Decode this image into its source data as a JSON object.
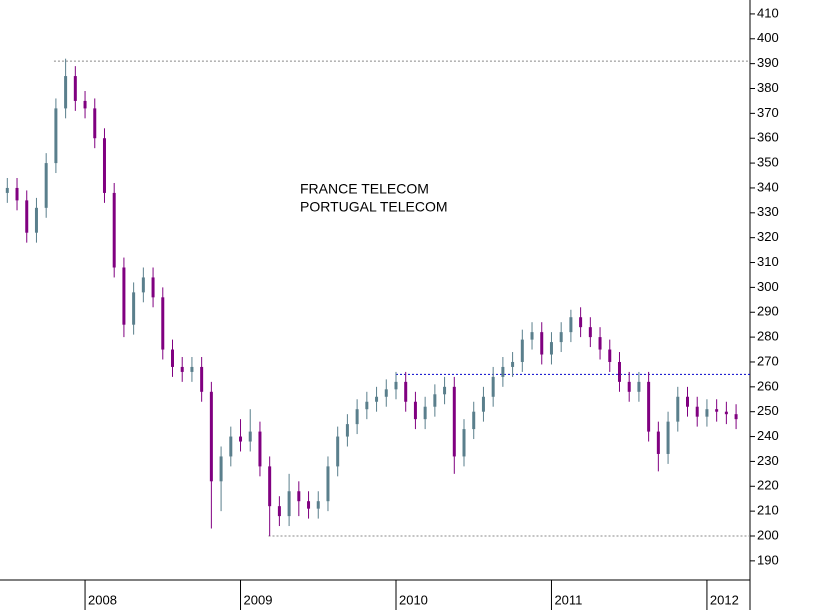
{
  "chart_data": {
    "type": "candlestick",
    "annotations": [
      "FRANCE TELECOM",
      "PORTUGAL TELECOM"
    ],
    "up_color": "#5a7f8c",
    "down_color": "#800080",
    "x": [
      2007.5,
      2007.5625,
      2007.625,
      2007.6875,
      2007.75,
      2007.8125,
      2007.875,
      2007.9375,
      2008,
      2008.0625,
      2008.125,
      2008.1875,
      2008.25,
      2008.3125,
      2008.375,
      2008.4375,
      2008.5,
      2008.5625,
      2008.625,
      2008.6875,
      2008.75,
      2008.8125,
      2008.875,
      2008.9375,
      2009,
      2009.0625,
      2009.125,
      2009.1875,
      2009.25,
      2009.3125,
      2009.375,
      2009.4375,
      2009.5,
      2009.5625,
      2009.625,
      2009.6875,
      2009.75,
      2009.8125,
      2009.875,
      2009.9375,
      2010,
      2010.0625,
      2010.125,
      2010.1875,
      2010.25,
      2010.3125,
      2010.375,
      2010.4375,
      2010.5,
      2010.5625,
      2010.625,
      2010.6875,
      2010.75,
      2010.8125,
      2010.875,
      2010.9375,
      2011,
      2011.0625,
      2011.125,
      2011.1875,
      2011.25,
      2011.3125,
      2011.375,
      2011.4375,
      2011.5,
      2011.5625,
      2011.625,
      2011.6875,
      2011.75,
      2011.8125,
      2011.875,
      2011.9375,
      2012,
      2012.0625,
      2012.125,
      2012.1875
    ],
    "open": [
      338,
      340,
      335,
      322,
      332,
      350,
      372,
      385,
      375,
      372,
      360,
      338,
      308,
      285,
      298,
      304,
      296,
      275,
      268,
      266,
      268,
      258,
      222,
      232,
      240,
      238,
      242,
      228,
      212,
      208,
      218,
      214,
      211,
      214,
      228,
      240,
      245,
      251,
      254,
      256,
      259,
      262,
      254,
      247,
      252,
      257,
      260,
      232,
      243,
      250,
      256,
      264,
      268,
      270,
      279,
      282,
      273,
      278,
      282,
      288,
      284,
      280,
      275,
      270,
      262,
      258,
      262,
      242,
      233,
      246,
      256,
      252,
      248,
      251,
      250,
      249
    ],
    "high": [
      344,
      344,
      339,
      336,
      354,
      376,
      392,
      389,
      379,
      376,
      364,
      342,
      312,
      302,
      308,
      308,
      300,
      279,
      272,
      272,
      272,
      262,
      236,
      244,
      247,
      251,
      246,
      232,
      216,
      225,
      222,
      218,
      218,
      232,
      244,
      249,
      255,
      258,
      260,
      263,
      266,
      266,
      258,
      256,
      261,
      264,
      264,
      247,
      254,
      260,
      268,
      272,
      274,
      283,
      286,
      286,
      282,
      286,
      291,
      292,
      288,
      284,
      279,
      274,
      266,
      266,
      266,
      246,
      250,
      260,
      260,
      256,
      255,
      255,
      254,
      253
    ],
    "low": [
      334,
      331,
      318,
      318,
      328,
      346,
      368,
      371,
      368,
      356,
      334,
      304,
      280,
      281,
      294,
      292,
      271,
      264,
      262,
      262,
      254,
      203,
      210,
      228,
      234,
      234,
      224,
      200,
      204,
      204,
      208,
      207,
      207,
      210,
      224,
      236,
      241,
      247,
      250,
      252,
      255,
      250,
      243,
      243,
      248,
      253,
      225,
      228,
      239,
      246,
      252,
      260,
      264,
      266,
      275,
      269,
      269,
      274,
      278,
      280,
      276,
      271,
      266,
      258,
      254,
      254,
      238,
      226,
      229,
      242,
      248,
      244,
      244,
      246,
      245,
      243
    ],
    "close": [
      340,
      335,
      322,
      332,
      350,
      372,
      385,
      375,
      372,
      360,
      338,
      308,
      285,
      298,
      304,
      296,
      275,
      268,
      266,
      268,
      258,
      222,
      232,
      240,
      238,
      242,
      228,
      212,
      208,
      218,
      214,
      211,
      214,
      228,
      240,
      245,
      251,
      254,
      256,
      259,
      262,
      254,
      247,
      252,
      257,
      260,
      232,
      243,
      250,
      256,
      264,
      268,
      270,
      279,
      282,
      273,
      278,
      282,
      288,
      284,
      280,
      275,
      270,
      262,
      258,
      262,
      242,
      233,
      246,
      256,
      252,
      248,
      251,
      250,
      249,
      247
    ],
    "reference_lines": [
      {
        "y": 391,
        "x_start": 2007.8,
        "color": "#888888"
      },
      {
        "y": 265,
        "x_start": 2010,
        "color": "#0000cc"
      },
      {
        "y": 200,
        "x_start": 2009.18,
        "color": "#888888"
      }
    ],
    "xlim": [
      2007.453,
      2012.277
    ],
    "xticks": [
      2008,
      2009,
      2010,
      2011,
      2012
    ],
    "ylim": [
      182.3,
      415.6
    ],
    "yticks": [
      190,
      200,
      210,
      220,
      230,
      240,
      250,
      260,
      270,
      280,
      290,
      300,
      310,
      320,
      330,
      340,
      350,
      360,
      370,
      380,
      390,
      400,
      410
    ]
  }
}
